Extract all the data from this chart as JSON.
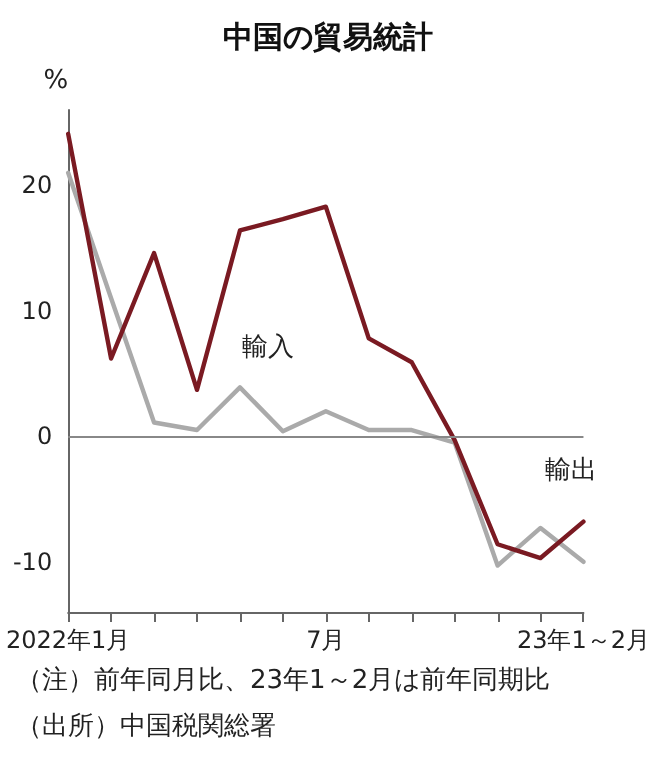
{
  "chart_data": {
    "type": "line",
    "title": "中国の貿易統計",
    "ylabel": "%",
    "categories": [
      "2022年1月",
      null,
      null,
      null,
      null,
      null,
      "7月",
      null,
      null,
      null,
      null,
      null,
      "23年1～2月"
    ],
    "series": [
      {
        "name": "輸出",
        "color": "#7a1a22",
        "values": [
          24.1,
          6.2,
          14.6,
          3.7,
          16.4,
          17.3,
          18.3,
          7.8,
          5.9,
          -0.3,
          -8.6,
          -9.7,
          -6.8
        ]
      },
      {
        "name": "輸入",
        "color": "#aaaaaa",
        "values": [
          21.0,
          11.0,
          1.1,
          0.5,
          3.9,
          0.4,
          2.0,
          0.5,
          0.5,
          -0.5,
          -10.3,
          -7.3,
          -10.0
        ]
      }
    ],
    "ylim": [
      -14,
      26
    ],
    "yticks": [
      -10,
      0,
      10,
      20
    ],
    "grid": false,
    "legend": false,
    "marker": "none",
    "line_style": "solid",
    "ref_lines": [
      {
        "axis": "y",
        "value": 0,
        "color": "#888888"
      }
    ],
    "annotations": [
      "（注）前年同月比、23年1～2月は前年同期比",
      "（出所）中国税関総署"
    ]
  }
}
